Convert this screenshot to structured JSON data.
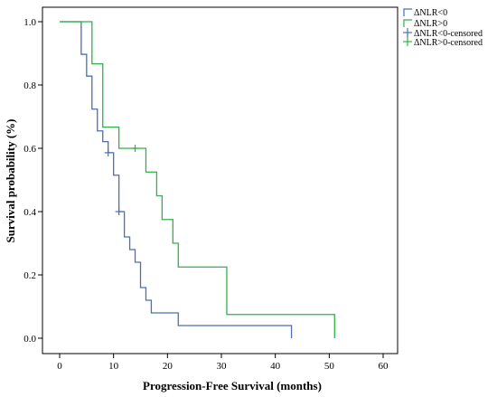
{
  "chart_data": {
    "type": "line",
    "subtype": "step",
    "title": "",
    "xlabel": "Progression-Free Survival (months)",
    "ylabel": "Survival probability (%)",
    "xlim": [
      0,
      60
    ],
    "ylim": [
      0,
      1.0
    ],
    "xticks": [
      0,
      10,
      20,
      30,
      40,
      50,
      60
    ],
    "yticks": [
      0.0,
      0.2,
      0.4,
      0.6,
      0.8,
      1.0
    ],
    "xtick_labels": [
      "0",
      "10",
      "20",
      "30",
      "40",
      "50",
      "60"
    ],
    "ytick_labels": [
      "0.0",
      "0.2",
      "0.4",
      "0.6",
      "0.8",
      "1.0"
    ],
    "legend_position": "top-right",
    "legend": [
      "ΔNLR<0",
      "ΔNLR>0",
      "ΔNLR<0-censored",
      "ΔNLR>0-censored"
    ],
    "series": [
      {
        "name": "ΔNLR<0",
        "color": "#4a6fb5",
        "steps": [
          [
            0,
            1.0
          ],
          [
            4.0,
            0.897
          ],
          [
            5.0,
            0.828
          ],
          [
            6.0,
            0.724
          ],
          [
            7.0,
            0.655
          ],
          [
            8.0,
            0.621
          ],
          [
            9.0,
            0.586
          ],
          [
            10.0,
            0.515
          ],
          [
            11.0,
            0.4
          ],
          [
            12.0,
            0.32
          ],
          [
            13.0,
            0.28
          ],
          [
            14.0,
            0.24
          ],
          [
            15.0,
            0.16
          ],
          [
            16.0,
            0.12
          ],
          [
            17.0,
            0.08
          ],
          [
            22.0,
            0.04
          ],
          [
            43.0,
            0.0
          ]
        ],
        "end_x": 43.0,
        "censored": [
          [
            9.0,
            0.586
          ],
          [
            11.0,
            0.4
          ]
        ]
      },
      {
        "name": "ΔNLR>0",
        "color": "#2eb34a",
        "steps": [
          [
            0,
            1.0
          ],
          [
            6.0,
            0.867
          ],
          [
            8.0,
            0.667
          ],
          [
            11.0,
            0.6
          ],
          [
            16.0,
            0.525
          ],
          [
            18.0,
            0.45
          ],
          [
            19.0,
            0.375
          ],
          [
            21.0,
            0.3
          ],
          [
            22.0,
            0.225
          ],
          [
            31.0,
            0.075
          ],
          [
            51.0,
            0.0
          ]
        ],
        "end_x": 51.0,
        "censored": [
          [
            14.0,
            0.6
          ]
        ]
      }
    ]
  }
}
